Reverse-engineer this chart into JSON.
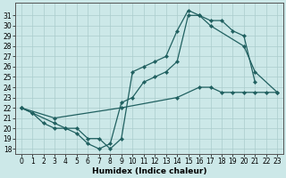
{
  "xlabel": "Humidex (Indice chaleur)",
  "xlim_left": -0.5,
  "xlim_right": 23.5,
  "ylim_bottom": 17.5,
  "ylim_top": 32.2,
  "xticks": [
    0,
    1,
    2,
    3,
    4,
    5,
    6,
    7,
    8,
    9,
    10,
    11,
    12,
    13,
    14,
    15,
    16,
    17,
    18,
    19,
    20,
    21,
    22,
    23
  ],
  "yticks": [
    18,
    19,
    20,
    21,
    22,
    23,
    24,
    25,
    26,
    27,
    28,
    29,
    30,
    31
  ],
  "line_color": "#206060",
  "bg_color": "#cce8e8",
  "grid_color": "#b0d8d8",
  "marker": "D",
  "marker_size": 2.2,
  "line_width": 0.9,
  "line1_x": [
    0,
    1,
    2,
    3,
    4,
    5,
    6,
    7,
    8,
    9,
    10,
    11,
    12,
    13,
    14,
    15,
    16,
    17,
    18,
    19,
    20,
    21
  ],
  "line1_y": [
    22,
    21.5,
    20.5,
    20,
    20,
    19.5,
    18.5,
    18,
    18.5,
    22.5,
    23,
    24.5,
    25,
    25.5,
    26.5,
    31,
    31,
    30.5,
    30.5,
    29.5,
    29,
    24.5
  ],
  "line2_x": [
    0,
    1,
    3,
    4,
    5,
    6,
    7,
    8,
    9,
    10,
    11,
    12,
    13,
    14,
    15,
    16,
    17,
    20,
    21,
    23
  ],
  "line2_y": [
    22,
    21.5,
    20.5,
    20,
    20,
    19,
    19,
    18,
    19,
    25.5,
    26,
    26.5,
    27,
    29.5,
    31.5,
    31,
    30,
    28,
    25.5,
    23.5
  ],
  "line3_x": [
    0,
    3,
    9,
    14,
    16,
    17,
    18,
    19,
    20,
    21,
    22,
    23
  ],
  "line3_y": [
    22,
    21,
    22,
    23,
    24,
    24,
    23.5,
    23.5,
    23.5,
    23.5,
    23.5,
    23.5
  ],
  "tick_fontsize": 5.5,
  "xlabel_fontsize": 6.5
}
